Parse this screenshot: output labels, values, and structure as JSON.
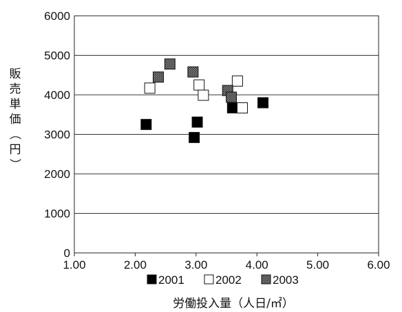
{
  "chart_data": {
    "type": "scatter",
    "title": "",
    "xlabel": "労働投入量（人日/㎡）",
    "ylabel": "販売単価（円）",
    "xlim": [
      1.0,
      6.0
    ],
    "ylim": [
      0,
      6000
    ],
    "xticks": [
      "1.00",
      "2.00",
      "3.00",
      "4.00",
      "5.00",
      "6.00"
    ],
    "yticks": [
      "0",
      "1000",
      "2000",
      "3000",
      "4000",
      "5000",
      "6000"
    ],
    "grid": "horizontal",
    "legend_position": "bottom",
    "series": [
      {
        "name": "2001",
        "fill": "#000000",
        "points": [
          {
            "x": 2.18,
            "y": 3250
          },
          {
            "x": 2.97,
            "y": 2920
          },
          {
            "x": 3.02,
            "y": 3310
          },
          {
            "x": 3.6,
            "y": 3670
          },
          {
            "x": 4.1,
            "y": 3800
          }
        ]
      },
      {
        "name": "2002",
        "fill": "#ffffff",
        "points": [
          {
            "x": 2.24,
            "y": 4170
          },
          {
            "x": 3.05,
            "y": 4250
          },
          {
            "x": 3.12,
            "y": 3990
          },
          {
            "x": 3.68,
            "y": 4350
          },
          {
            "x": 3.76,
            "y": 3670
          }
        ]
      },
      {
        "name": "2003",
        "fill": "#6a6a6a",
        "points": [
          {
            "x": 2.38,
            "y": 4450
          },
          {
            "x": 2.57,
            "y": 4780
          },
          {
            "x": 2.95,
            "y": 4580
          },
          {
            "x": 3.52,
            "y": 4110
          },
          {
            "x": 3.58,
            "y": 3940
          }
        ]
      }
    ]
  }
}
